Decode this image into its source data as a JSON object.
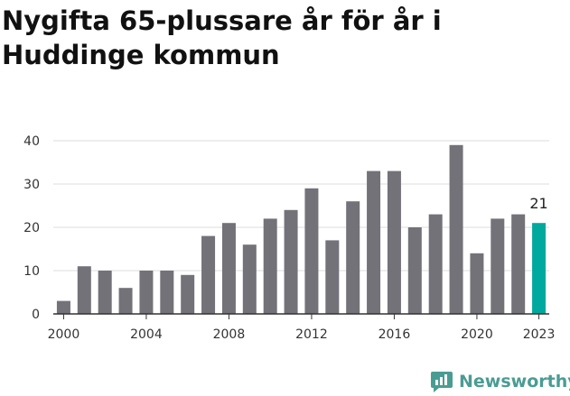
{
  "title": "Nygifta 65-plussare år för år i Huddinge kommun",
  "brand": {
    "name": "Newsworthy",
    "icon": "newsworthy-logo-icon",
    "color": "#4a9c93"
  },
  "colors": {
    "bar": "#737278",
    "highlight": "#00a99d",
    "grid": "#dddddd",
    "axis": "#333333"
  },
  "chart_data": {
    "type": "bar",
    "x": [
      2000,
      2001,
      2002,
      2003,
      2004,
      2005,
      2006,
      2007,
      2008,
      2009,
      2010,
      2011,
      2012,
      2013,
      2014,
      2015,
      2016,
      2017,
      2018,
      2019,
      2020,
      2021,
      2022,
      2023
    ],
    "values": [
      3,
      11,
      10,
      6,
      10,
      10,
      9,
      18,
      21,
      16,
      22,
      24,
      29,
      17,
      26,
      33,
      33,
      20,
      23,
      39,
      14,
      22,
      23,
      21
    ],
    "ylim": [
      0,
      40
    ],
    "yticks": [
      0,
      10,
      20,
      30,
      40
    ],
    "xtick_labels": [
      "2000",
      "2004",
      "2008",
      "2012",
      "2016",
      "2020",
      "2023"
    ],
    "highlight": {
      "x": 2023,
      "label": "21"
    },
    "grid": true
  }
}
